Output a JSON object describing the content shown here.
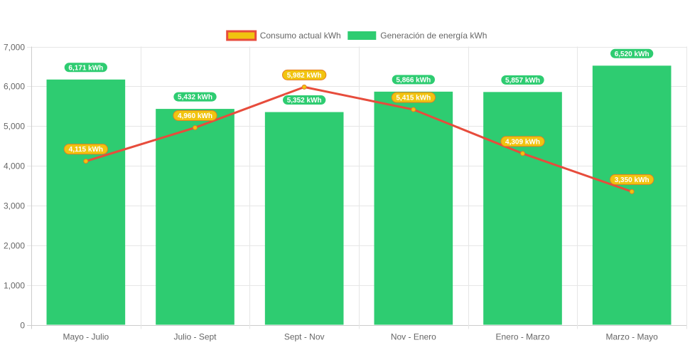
{
  "chart_data": {
    "type": "bar",
    "categories": [
      "Mayo - Julio",
      "Julio - Sept",
      "Sept - Nov",
      "Nov - Enero",
      "Enero - Marzo",
      "Marzo - Mayo"
    ],
    "series": [
      {
        "name": "Consumo actual kWh",
        "type": "line",
        "values": [
          4115,
          4960,
          5982,
          5415,
          4309,
          3350
        ],
        "labels": [
          "4,115 kWh",
          "4,960 kWh",
          "5,982 kWh",
          "5,415 kWh",
          "4,309 kWh",
          "3,350 kWh"
        ],
        "color": "#e74c3c",
        "label_color": "#f1c40f",
        "label_border": "#e67e22"
      },
      {
        "name": "Generación de energía kWh",
        "type": "bar",
        "values": [
          6171,
          5432,
          5352,
          5866,
          5857,
          6520
        ],
        "labels": [
          "6,171 kWh",
          "5,432 kWh",
          "5,352 kWh",
          "5,866 kWh",
          "5,857 kWh",
          "6,520 kWh"
        ],
        "color": "#2ecc71"
      }
    ],
    "ylim": [
      0,
      7000
    ],
    "yticks": [
      "0",
      "1,000",
      "2,000",
      "3,000",
      "4,000",
      "5,000",
      "6,000",
      "7,000"
    ],
    "legend": "top-center",
    "grid": true
  }
}
